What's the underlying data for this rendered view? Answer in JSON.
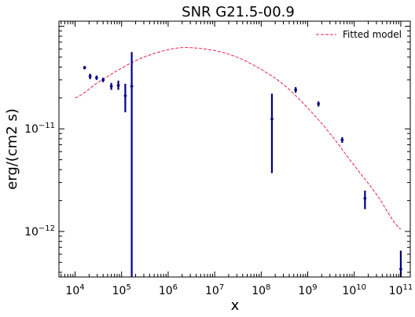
{
  "chart_data": {
    "type": "scatter",
    "title": "SNR G21.5-00.9",
    "xlabel": "x",
    "ylabel": "erg/(cm2 s)",
    "xscale": "log",
    "yscale": "log",
    "xlim": [
      4500.0,
      160000000000.0
    ],
    "ylim": [
      3.6e-13,
      1.12e-10
    ],
    "grid": false,
    "legend": "top-right",
    "x_ticks": [
      {
        "value": 10000.0,
        "base": "10",
        "exp": "4"
      },
      {
        "value": 100000.0,
        "base": "10",
        "exp": "5"
      },
      {
        "value": 1000000.0,
        "base": "10",
        "exp": "6"
      },
      {
        "value": 10000000.0,
        "base": "10",
        "exp": "7"
      },
      {
        "value": 100000000.0,
        "base": "10",
        "exp": "8"
      },
      {
        "value": 1000000000.0,
        "base": "10",
        "exp": "9"
      },
      {
        "value": 10000000000.0,
        "base": "10",
        "exp": "10"
      },
      {
        "value": 100000000000.0,
        "base": "10",
        "exp": "11"
      }
    ],
    "y_ticks": [
      {
        "value": 1e-11,
        "base": "10",
        "exp": "−11"
      },
      {
        "value": 1e-12,
        "base": "10",
        "exp": "−12"
      }
    ],
    "model": {
      "name": "Fitted model",
      "color": "#e8204a",
      "x": [
        10000.0,
        30000.0,
        100000.0,
        300000.0,
        1000000.0,
        2500000.0,
        10000000.0,
        30000000.0,
        100000000.0,
        300000000.0,
        1000000000.0,
        3000000000.0,
        10000000000.0,
        30000000000.0,
        100000000000.0
      ],
      "y": [
        2e-11,
        2.8e-11,
        3.9e-11,
        5e-11,
        5.9e-11,
        6.2e-11,
        5.8e-11,
        5e-11,
        3.8e-11,
        2.7e-11,
        1.6e-11,
        9e-12,
        4.4e-12,
        2.3e-12,
        1.05e-12
      ]
    },
    "series": [
      {
        "color": "#00007f",
        "points": [
          {
            "x": 16000.0,
            "y": 3.95e-11,
            "ylo": 3.8e-11,
            "yhi": 4.1e-11
          },
          {
            "x": 21000.0,
            "y": 3.25e-11,
            "ylo": 3.05e-11,
            "yhi": 3.45e-11
          },
          {
            "x": 29000.0,
            "y": 3.15e-11,
            "ylo": 3e-11,
            "yhi": 3.3e-11
          },
          {
            "x": 40000.0,
            "y": 3e-11,
            "ylo": 2.85e-11,
            "yhi": 3.15e-11
          },
          {
            "x": 60000.0,
            "y": 2.6e-11,
            "ylo": 2.4e-11,
            "yhi": 2.8e-11
          },
          {
            "x": 85000.0,
            "y": 2.65e-11,
            "ylo": 2.4e-11,
            "yhi": 2.95e-11
          },
          {
            "x": 120000.0,
            "y": 2.1e-11,
            "ylo": 1.45e-11,
            "yhi": 2.75e-11
          },
          {
            "x": 165000.0,
            "y": 2.6e-11,
            "ylo": 3.6e-13,
            "yhi": 5.6e-11
          },
          {
            "x": 170000000.0,
            "y": 1.25e-11,
            "ylo": 3.7e-12,
            "yhi": 2.2e-11
          },
          {
            "x": 550000000.0,
            "y": 2.4e-11,
            "ylo": 2.25e-11,
            "yhi": 2.55e-11
          },
          {
            "x": 1700000000.0,
            "y": 1.75e-11,
            "ylo": 1.65e-11,
            "yhi": 1.85e-11
          },
          {
            "x": 5500000000.0,
            "y": 7.8e-12,
            "ylo": 7.3e-12,
            "yhi": 8.3e-12
          },
          {
            "x": 17000000000.0,
            "y": 2.1e-12,
            "ylo": 1.65e-12,
            "yhi": 2.5e-12
          },
          {
            "x": 100000000000.0,
            "y": 4.3e-13,
            "ylo": 3.6e-13,
            "yhi": 6.5e-13
          }
        ]
      }
    ]
  }
}
